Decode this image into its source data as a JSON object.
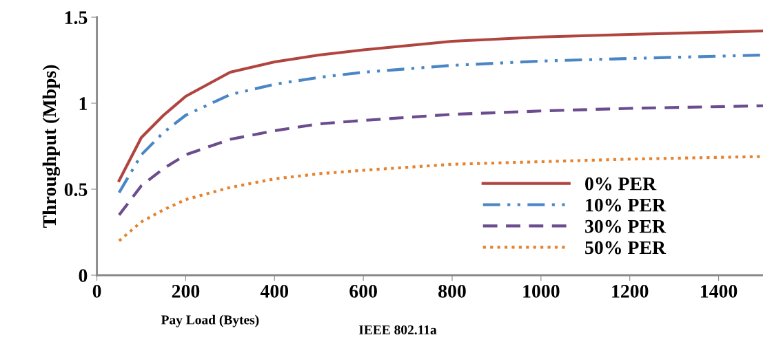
{
  "chart_data": {
    "type": "line",
    "xlabel": "Pay Load (Bytes)",
    "ylabel": "Throughput (Mbps)",
    "annotations": [
      "IEEE 802.11a"
    ],
    "x": [
      50,
      100,
      150,
      200,
      300,
      400,
      500,
      600,
      800,
      1000,
      1200,
      1500
    ],
    "xlim": [
      0,
      1500
    ],
    "xticks": [
      0,
      200,
      400,
      600,
      800,
      1000,
      1200,
      1400
    ],
    "ylim": [
      0,
      1.5
    ],
    "yticks": [
      0,
      0.5,
      1,
      1.5
    ],
    "grid": false,
    "legend": "bottom right",
    "marker": "none",
    "series": [
      {
        "name": "0% PER",
        "color": "#b04540",
        "line_style": "solid",
        "values": [
          0.55,
          0.8,
          0.93,
          1.04,
          1.18,
          1.24,
          1.28,
          1.31,
          1.36,
          1.385,
          1.4,
          1.42
        ]
      },
      {
        "name": "10% PER",
        "color": "#4a86c5",
        "line_style": "dashdotdot",
        "values": [
          0.48,
          0.7,
          0.83,
          0.93,
          1.05,
          1.11,
          1.15,
          1.18,
          1.22,
          1.245,
          1.26,
          1.28
        ]
      },
      {
        "name": "30% PER",
        "color": "#6b4c8e",
        "line_style": "dashed",
        "values": [
          0.35,
          0.52,
          0.62,
          0.7,
          0.79,
          0.84,
          0.88,
          0.9,
          0.935,
          0.955,
          0.97,
          0.985
        ]
      },
      {
        "name": "50% PER",
        "color": "#e5822f",
        "line_style": "dotted",
        "values": [
          0.2,
          0.31,
          0.38,
          0.44,
          0.51,
          0.56,
          0.59,
          0.61,
          0.645,
          0.66,
          0.675,
          0.69
        ]
      }
    ]
  }
}
